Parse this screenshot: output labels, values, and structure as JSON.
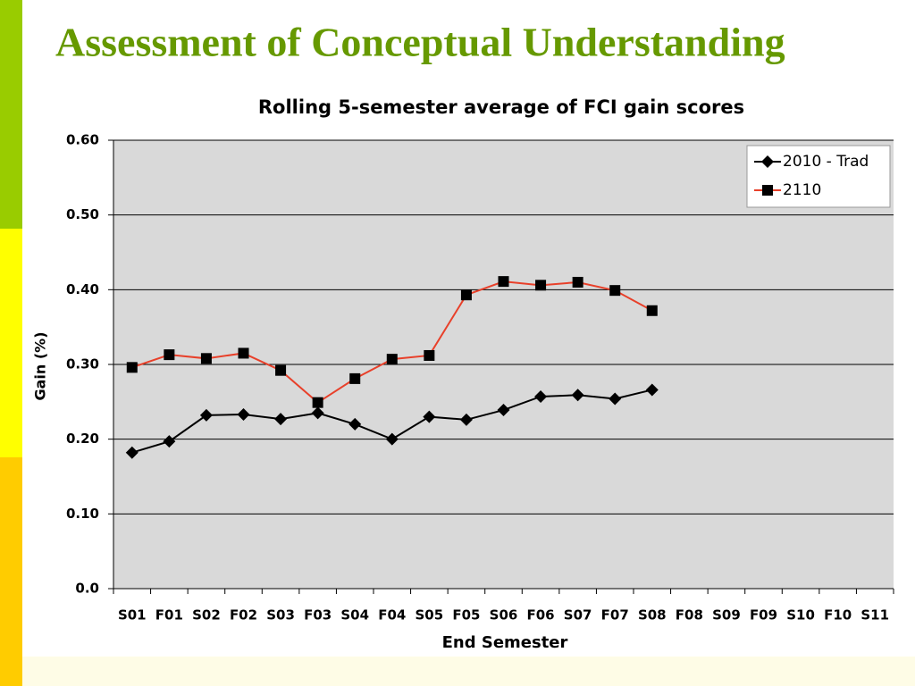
{
  "slide_title": "Assessment of Conceptual Understanding",
  "chart_data": {
    "type": "line",
    "title": "Rolling 5-semester average of FCI gain scores",
    "xlabel": "End Semester",
    "ylabel": "Gain (%)",
    "categories": [
      "S01",
      "F01",
      "S02",
      "F02",
      "S03",
      "F03",
      "S04",
      "F04",
      "S05",
      "F05",
      "S06",
      "F06",
      "S07",
      "F07",
      "S08",
      "F08",
      "S09",
      "F09",
      "S10",
      "F10",
      "S11"
    ],
    "series": [
      {
        "name": "2010 - Trad",
        "color": "#000000",
        "marker": "diamond",
        "marker_color": "#000000",
        "values": [
          0.182,
          0.197,
          0.232,
          0.233,
          0.227,
          0.235,
          0.22,
          0.2,
          0.23,
          0.226,
          0.239,
          0.257,
          0.259,
          0.254,
          0.266,
          null,
          null,
          null,
          null,
          null,
          null
        ]
      },
      {
        "name": "2110",
        "color": "#e8402a",
        "marker": "square",
        "marker_color": "#000000",
        "values": [
          0.296,
          0.313,
          0.308,
          0.315,
          0.292,
          0.249,
          0.281,
          0.307,
          0.312,
          0.393,
          0.411,
          0.406,
          0.41,
          0.399,
          0.372,
          null,
          null,
          null,
          null,
          null,
          null
        ]
      }
    ],
    "ylim": [
      0,
      0.6
    ],
    "yticks": [
      {
        "value": 0,
        "label": "0.0"
      },
      {
        "value": 0.1,
        "label": "0.10"
      },
      {
        "value": 0.2,
        "label": "0.20"
      },
      {
        "value": 0.3,
        "label": "0.30"
      },
      {
        "value": 0.4,
        "label": "0.40"
      },
      {
        "value": 0.5,
        "label": "0.50"
      },
      {
        "value": 0.6,
        "label": "0.60"
      }
    ],
    "grid": true,
    "plot_background": "#d9d9d9",
    "legend": "upper right"
  }
}
